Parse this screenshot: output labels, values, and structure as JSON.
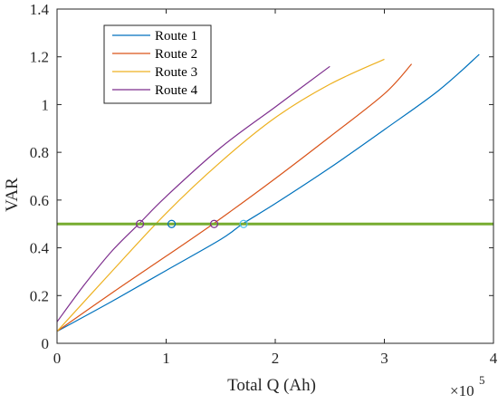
{
  "chart_data": {
    "type": "line",
    "xlabel": "Total Q (Ah)",
    "ylabel": "VAR",
    "x_multiplier": {
      "base": "×10",
      "exponent": "5"
    },
    "xlim": [
      0,
      4
    ],
    "ylim": [
      0,
      1.4
    ],
    "xticks": [
      0,
      1,
      2,
      3,
      4
    ],
    "yticks": [
      0,
      0.2,
      0.4,
      0.6,
      0.8,
      1,
      1.2,
      1.4
    ],
    "xtick_labels": [
      "0",
      "1",
      "2",
      "3",
      "4"
    ],
    "ytick_labels": [
      "0",
      "0.2",
      "0.4",
      "0.6",
      "0.8",
      "1",
      "1.2",
      "1.4"
    ],
    "grid": false,
    "legend_position": "top-left",
    "series": [
      {
        "name": "Route 1",
        "color": "#0072BD",
        "x": [
          0,
          0.5,
          1,
          1.5,
          1.7,
          2,
          2.5,
          3,
          3.5,
          3.87
        ],
        "y": [
          0.05,
          0.175,
          0.305,
          0.435,
          0.5,
          0.585,
          0.735,
          0.895,
          1.06,
          1.21
        ]
      },
      {
        "name": "Route 2",
        "color": "#D95319",
        "x": [
          0,
          0.5,
          1,
          1.43,
          2,
          2.5,
          3,
          3.25
        ],
        "y": [
          0.05,
          0.21,
          0.365,
          0.5,
          0.69,
          0.865,
          1.045,
          1.17
        ]
      },
      {
        "name": "Route 3",
        "color": "#EDB120",
        "x": [
          0,
          0.5,
          1,
          1.5,
          2,
          2.5,
          3.0
        ],
        "y": [
          0.05,
          0.3,
          0.545,
          0.76,
          0.945,
          1.085,
          1.19
        ]
      },
      {
        "name": "Route 4",
        "color": "#7E2F8E",
        "x": [
          0,
          0.25,
          0.5,
          0.75,
          1,
          1.5,
          2,
          2.5
        ],
        "y": [
          0.09,
          0.245,
          0.385,
          0.5,
          0.615,
          0.82,
          0.99,
          1.16
        ]
      }
    ],
    "threshold": {
      "y": 0.5,
      "color": "#77AC30"
    },
    "markers": [
      {
        "x": 0.76,
        "y": 0.5,
        "color": "#7E2F8E"
      },
      {
        "x": 1.05,
        "y": 0.5,
        "color": "#0072BD"
      },
      {
        "x": 1.44,
        "y": 0.5,
        "color": "#7E2F8E"
      },
      {
        "x": 1.71,
        "y": 0.5,
        "color": "#4DBEEE"
      }
    ]
  }
}
